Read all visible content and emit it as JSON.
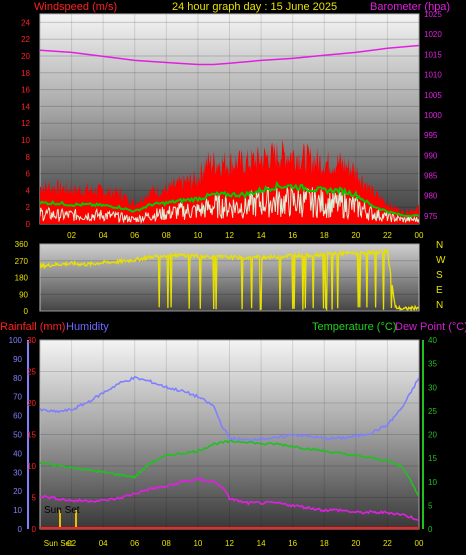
{
  "header": {
    "title": "24 hour graph day : 15 June 2025",
    "left_label": "Windspeed (m/s)",
    "right_label": "Barometer (hpa)"
  },
  "colors": {
    "wind_gust": "#ff0000",
    "wind_avg": "#00cc00",
    "wind_speed": "#d8f0d8",
    "barometer": "#e020e0",
    "direction": "#e8e000",
    "humidity": "#8080ff",
    "temperature": "#20c020",
    "dewpoint": "#e020e0",
    "rainfall": "#ff2020",
    "sunset": "#e8c000",
    "label_red": "#ff2020",
    "label_blue": "#6a6aff",
    "label_green": "#20d020",
    "label_magenta": "#d020d0"
  },
  "chart_data": [
    {
      "id": "wind_pressure",
      "type": "line",
      "x_ticks": [
        "02",
        "04",
        "06",
        "08",
        "10",
        "12",
        "14",
        "16",
        "18",
        "20",
        "22",
        "00"
      ],
      "ylim_left": [
        0,
        25
      ],
      "yticks_left": [
        "0",
        "2",
        "4",
        "6",
        "8",
        "10",
        "12",
        "14",
        "16",
        "18",
        "20",
        "22",
        "24"
      ],
      "ylim_right": [
        973,
        1025
      ],
      "yticks_right": [
        "975",
        "980",
        "985",
        "990",
        "995",
        "1000",
        "1005",
        "1010",
        "1015",
        "1020",
        "1025"
      ],
      "series": [
        {
          "key": "gust",
          "axis": "left",
          "x": [
            0,
            1,
            2,
            3,
            4,
            5,
            6,
            7,
            8,
            9,
            10,
            10.5,
            11,
            12,
            13,
            14,
            15,
            16,
            17,
            18,
            19,
            20,
            21,
            22,
            23,
            24
          ],
          "values": [
            4.5,
            4.5,
            4.2,
            4.2,
            4,
            3.8,
            2.5,
            4,
            4.2,
            5,
            5.5,
            7.5,
            7.5,
            7.5,
            7.5,
            8,
            8.5,
            8.5,
            8,
            7.5,
            7.5,
            6.5,
            4,
            2.5,
            1.5,
            2
          ]
        },
        {
          "key": "avg",
          "axis": "left",
          "x": [
            0,
            1,
            2,
            3,
            4,
            5,
            6,
            7,
            8,
            9,
            10,
            11,
            12,
            13,
            14,
            15,
            16,
            17,
            18,
            19,
            20,
            21,
            22,
            23,
            24
          ],
          "values": [
            2.5,
            2.5,
            2.3,
            2.3,
            2.2,
            2,
            1.5,
            2.3,
            2.5,
            2.8,
            3,
            3.5,
            3.5,
            3.5,
            4,
            4.5,
            4.5,
            4.2,
            4,
            4,
            3.5,
            2.2,
            1.5,
            1,
            1
          ]
        },
        {
          "key": "speed",
          "axis": "left",
          "x": [
            0,
            1,
            2,
            3,
            4,
            5,
            6,
            7,
            8,
            9,
            10,
            11,
            12,
            13,
            14,
            15,
            16,
            17,
            18,
            19,
            20,
            21,
            22,
            23,
            24
          ],
          "values": [
            1.2,
            1,
            1,
            1,
            1,
            0.8,
            0.5,
            1,
            1.2,
            1.5,
            1.5,
            2,
            2,
            2,
            2.5,
            2.5,
            2.5,
            2.5,
            2.3,
            2.2,
            2,
            1.2,
            0.8,
            0.5,
            0.5
          ]
        },
        {
          "key": "pressure",
          "axis": "right",
          "x": [
            0,
            2,
            4,
            6,
            8,
            10,
            11,
            12,
            14,
            16,
            18,
            20,
            22,
            24
          ],
          "values": [
            1016,
            1015.5,
            1014.5,
            1013.5,
            1013,
            1012.5,
            1012.5,
            1012.8,
            1013.5,
            1014,
            1014.8,
            1015.5,
            1016.5,
            1017.2
          ]
        }
      ]
    },
    {
      "id": "wind_direction",
      "type": "scatter",
      "x_ticks": [],
      "ylim": [
        0,
        360
      ],
      "yticks": [
        "360",
        "270",
        "180",
        "90",
        "0"
      ],
      "compass": [
        "N",
        "W",
        "S",
        "E",
        "N"
      ],
      "series": [
        {
          "key": "direction",
          "x": [
            0,
            1,
            2,
            3,
            4,
            5,
            6,
            7,
            8,
            9,
            10,
            11,
            12,
            13,
            14,
            15,
            16,
            17,
            18,
            19,
            20,
            21,
            22,
            22.5,
            23,
            23.5,
            24
          ],
          "values": [
            240,
            250,
            255,
            250,
            260,
            265,
            275,
            290,
            300,
            300,
            295,
            290,
            290,
            285,
            290,
            290,
            300,
            300,
            305,
            310,
            310,
            315,
            320,
            20,
            10,
            15,
            20
          ]
        }
      ]
    },
    {
      "id": "temp_humidity",
      "type": "line",
      "x_ticks": [
        "Sun Set",
        "02",
        "04",
        "06",
        "08",
        "10",
        "12",
        "14",
        "16",
        "18",
        "20",
        "22",
        "00"
      ],
      "header_left": "Rainfall (mm)",
      "header_humidity": "Humidity",
      "header_temp": "Temperature (°C)",
      "header_dew": "Dew Point (°C)",
      "sunset_label": "Sun Set",
      "ylim_humidity": [
        0,
        100
      ],
      "yticks_humidity": [
        "0",
        "10",
        "20",
        "30",
        "40",
        "50",
        "60",
        "70",
        "80",
        "90",
        "100"
      ],
      "ylim_rain": [
        0,
        30
      ],
      "yticks_rain": [
        "0",
        "5",
        "10",
        "15",
        "20",
        "25",
        "30"
      ],
      "ylim_temp": [
        0,
        40
      ],
      "yticks_temp": [
        "0",
        "5",
        "10",
        "15",
        "20",
        "25",
        "30",
        "35",
        "40"
      ],
      "series": [
        {
          "key": "humidity",
          "axis": "humidity",
          "x": [
            0,
            1,
            2,
            3,
            4,
            5,
            6,
            7,
            8,
            9,
            10,
            11,
            11.5,
            12,
            13,
            14,
            15,
            16,
            17,
            18,
            19,
            20,
            21,
            22,
            23,
            24
          ],
          "values": [
            63,
            62,
            63,
            67,
            72,
            77,
            80,
            78,
            75,
            73,
            70,
            65,
            55,
            48,
            47,
            48,
            48,
            50,
            49,
            48,
            48,
            49,
            51,
            55,
            65,
            80
          ]
        },
        {
          "key": "temperature",
          "axis": "temp",
          "x": [
            0,
            1,
            2,
            3,
            4,
            5,
            6,
            7,
            8,
            9,
            10,
            11,
            12,
            13,
            14,
            15,
            16,
            17,
            18,
            19,
            20,
            21,
            22,
            23,
            24
          ],
          "values": [
            14,
            13.5,
            13,
            12.5,
            12,
            11.5,
            11,
            14,
            15.5,
            16,
            16.5,
            18,
            18.5,
            18.5,
            18,
            18,
            17.5,
            17,
            16.5,
            16,
            15.5,
            15,
            14.5,
            13,
            7
          ]
        },
        {
          "key": "dewpoint",
          "axis": "temp",
          "x": [
            0,
            1,
            2,
            3,
            4,
            5,
            6,
            7,
            8,
            9,
            10,
            11,
            11.5,
            12,
            13,
            14,
            15,
            16,
            17,
            18,
            19,
            20,
            21,
            22,
            23,
            24
          ],
          "values": [
            7,
            6.5,
            6,
            6,
            6,
            6.5,
            7.5,
            8.5,
            9,
            10,
            10.5,
            10,
            9,
            6.5,
            5.5,
            5.5,
            5.5,
            5,
            4.5,
            4,
            4,
            3.5,
            3.5,
            3.5,
            3,
            2
          ]
        },
        {
          "key": "rainfall",
          "axis": "rain",
          "x": [
            0,
            24
          ],
          "values": [
            0,
            0
          ]
        }
      ]
    }
  ]
}
